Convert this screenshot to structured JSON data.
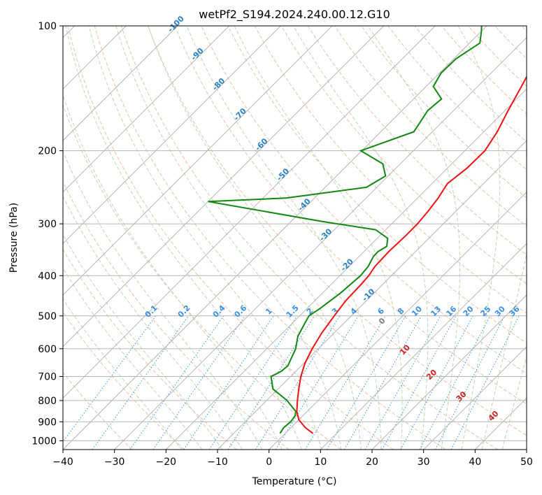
{
  "chart_data": {
    "type": "line",
    "title": "wetPf2_S194.2024.240.00.12.G10",
    "xlabel": "Temperature (°C)",
    "ylabel": "Pressure (hPa)",
    "xlim": [
      -40,
      50
    ],
    "ylim": [
      1050,
      100
    ],
    "y_scale": "log",
    "grid": true,
    "x_ticks": [
      -40,
      -30,
      -20,
      -10,
      0,
      10,
      20,
      30,
      40,
      50
    ],
    "y_ticks": [
      100,
      200,
      300,
      400,
      500,
      600,
      700,
      800,
      900,
      1000
    ],
    "colors": {
      "temperature": "#ee1111",
      "dewpoint": "#118811",
      "isotherm": "#b5b5b5",
      "dry_adiabat": "#e8bfa8",
      "moist_adiabat": "#b7d8b0",
      "mixing_ratio": "#3b8fe0",
      "label_blue": "#2a7fc0",
      "label_red": "#cc2222",
      "label_gray": "#808080"
    },
    "series": [
      {
        "key": "temperature",
        "p": [
          960,
          930,
          890,
          850,
          800,
          750,
          700,
          650,
          600,
          550,
          500,
          460,
          420,
          400,
          380,
          365,
          350,
          335,
          320,
          300,
          280,
          260,
          240,
          220,
          200,
          180,
          160,
          140,
          120,
          100
        ],
        "t": [
          5.4,
          2.8,
          0,
          -2,
          -4,
          -6,
          -8,
          -9.8,
          -11.2,
          -12.4,
          -13.3,
          -14,
          -14.2,
          -14.4,
          -15,
          -15.1,
          -15.2,
          -15.1,
          -15,
          -15,
          -15.4,
          -16,
          -17,
          -16.2,
          -16.1,
          -17.4,
          -19.4,
          -21.5,
          -24,
          -26.5
        ]
      },
      {
        "key": "dewpoint",
        "p": [
          960,
          930,
          900,
          870,
          850,
          800,
          750,
          700,
          680,
          660,
          600,
          560,
          520,
          500,
          480,
          440,
          400,
          380,
          360,
          350,
          340,
          325,
          310,
          296,
          265,
          260,
          245,
          230,
          215,
          200,
          180,
          160,
          150,
          140,
          130,
          120,
          110,
          103,
          100
        ],
        "t": [
          -1,
          -1.4,
          -1.2,
          -1.5,
          -2.2,
          -6,
          -11,
          -13.8,
          -12.8,
          -12.6,
          -14.4,
          -16.4,
          -17.6,
          -18.2,
          -17.5,
          -16.5,
          -16,
          -16.3,
          -17.2,
          -17.3,
          -16.6,
          -18,
          -22,
          -34,
          -60,
          -45.5,
          -32,
          -30.5,
          -33.4,
          -40.2,
          -33.6,
          -35,
          -34.6,
          -38.6,
          -39.7,
          -39.6,
          -38,
          -40,
          -41
        ]
      }
    ],
    "annotations": {
      "dry_adiabats": [
        "-100",
        "-90",
        "-80",
        "-70",
        "-60",
        "-50",
        "-40",
        "-30",
        "-20",
        "-10"
      ],
      "mixing_ratios": [
        "0.1",
        "0.2",
        "0.4",
        "0.6",
        "1",
        "1.5",
        "2",
        "3",
        "4",
        "6",
        "8",
        "10",
        "13",
        "16",
        "20",
        "25",
        "30",
        "36"
      ],
      "moist_adiabats": [
        "0",
        "10",
        "20",
        "30",
        "40"
      ]
    }
  }
}
